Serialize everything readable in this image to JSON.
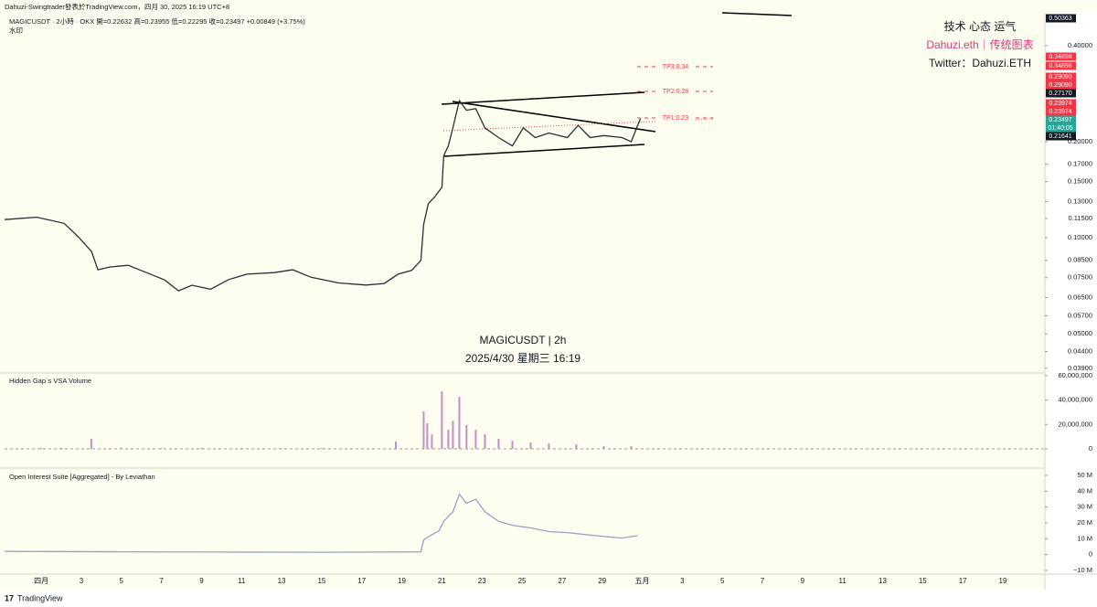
{
  "header": {
    "title": "Dahuzi-Swingtrader發表於TradingView.com，四月 30, 2025 16:19 UTC+8",
    "legend": "MAGICUSDT · 2小時 · OKX  開=0.22632 高=0.23955 低=0.22295 收=0.23497 +0.00849 (+3.75%)",
    "watermark_small": "水印"
  },
  "watermark": [
    "技术 心态 运气",
    "Dahuzi.eth｜传统图表",
    "Twitter：Dahuzi.ETH"
  ],
  "center_label": {
    "symbol": "MAGICUSDT | 2h",
    "date": "2025/4/30 星期三 16:19"
  },
  "tp_labels": [
    "TP3:0.34",
    "TP2:0.28",
    "TP1:0.23"
  ],
  "price_tags": [
    {
      "label": "0.50363",
      "color": "#131722"
    },
    {
      "label": "0.34898",
      "color": "#f23645"
    },
    {
      "label": "0.34898",
      "color": "#f23645"
    },
    {
      "label": "0.29090",
      "color": "#f23645"
    },
    {
      "label": "0.29090",
      "color": "#f23645"
    },
    {
      "label": "0.27170",
      "color": "#131722"
    },
    {
      "label": "0.23974",
      "color": "#f23645"
    },
    {
      "label": "0.23974",
      "color": "#f23645"
    },
    {
      "label": "0.23497",
      "color": "#26a69a"
    },
    {
      "label": "01:40:05",
      "color": "#26a69a"
    },
    {
      "label": "0.21641",
      "color": "#131722"
    }
  ],
  "footer": "TradingView",
  "chart_data": [
    {
      "type": "line",
      "log": true,
      "color": "#2a2e39",
      "xlim": [
        -0.83,
        51.1
      ],
      "xticks": [
        {
          "value": 1,
          "label": "四月"
        },
        3,
        5,
        7,
        9,
        11,
        13,
        15,
        17,
        19,
        21,
        23,
        25,
        27,
        29,
        {
          "value": 31,
          "label": "五月"
        },
        {
          "value": 33,
          "label": "3"
        },
        {
          "value": 35,
          "label": "5"
        },
        {
          "value": 37,
          "label": "7"
        },
        {
          "value": 39,
          "label": "9"
        },
        {
          "value": 41,
          "label": "11"
        },
        {
          "value": 43,
          "label": "13"
        },
        {
          "value": 45,
          "label": "15"
        },
        {
          "value": 47,
          "label": "17"
        },
        {
          "value": 49,
          "label": "19"
        }
      ],
      "ylim": [
        0.0377,
        0.507
      ],
      "yticks": [
        {
          "value": 0.4,
          "label": "0.40000"
        },
        {
          "value": 0.2,
          "label": "0.20000"
        },
        {
          "value": 0.17,
          "label": "0.17000"
        },
        {
          "value": 0.15,
          "label": "0.15000"
        },
        {
          "value": 0.13,
          "label": "0.13000"
        },
        {
          "value": 0.115,
          "label": "0.11500"
        },
        {
          "value": 0.1,
          "label": "0.10000"
        },
        {
          "value": 0.085,
          "label": "0.08500"
        },
        {
          "value": 0.075,
          "label": "0.07500"
        },
        {
          "value": 0.065,
          "label": "0.06500"
        },
        {
          "value": 0.057,
          "label": "0.05700"
        },
        {
          "value": 0.05,
          "label": "0.05000"
        },
        {
          "value": 0.044,
          "label": "0.04400"
        },
        {
          "value": 0.039,
          "label": "0.03900"
        }
      ],
      "x": [
        -0.83,
        0.77,
        2.14,
        2.83,
        3.51,
        3.83,
        4.42,
        5.34,
        6.25,
        7.16,
        7.85,
        8.53,
        9.45,
        10.36,
        11.27,
        12.64,
        13.56,
        14.47,
        15.84,
        17.21,
        18.12,
        18.81,
        19.49,
        19.95,
        20.09,
        20.32,
        20.63,
        21.0,
        21.09,
        21.32,
        21.55,
        21.87,
        22.23,
        22.69,
        23.15,
        23.83,
        24.52,
        25.06,
        25.66,
        26.34,
        27.26,
        27.8,
        28.4,
        29.08,
        29.99,
        30.45,
        30.77,
        30.91
      ],
      "values": [
        0.114,
        0.116,
        0.111,
        0.101,
        0.0906,
        0.0794,
        0.081,
        0.082,
        0.0778,
        0.0738,
        0.0682,
        0.071,
        0.069,
        0.074,
        0.0769,
        0.0778,
        0.0794,
        0.0752,
        0.0722,
        0.0711,
        0.0719,
        0.0769,
        0.079,
        0.0849,
        0.11,
        0.128,
        0.134,
        0.144,
        0.181,
        0.194,
        0.221,
        0.269,
        0.251,
        0.254,
        0.221,
        0.206,
        0.194,
        0.221,
        0.206,
        0.213,
        0.206,
        0.225,
        0.206,
        0.209,
        0.206,
        0.2,
        0.225,
        0.236
      ]
    },
    {
      "type": "bar",
      "title": "Hidden Gap`s VSA Volume",
      "color": "#c48fc8",
      "ylim": [
        -15700000,
        62200000
      ],
      "yticks": [
        {
          "value": 60000000,
          "label": "60,000,000"
        },
        {
          "value": 40000000,
          "label": "40,000,000"
        },
        {
          "value": 20000000,
          "label": "20,000,000"
        },
        0
      ],
      "x": [
        1,
        2,
        3.5,
        5,
        7,
        9,
        11,
        13,
        15,
        17,
        18.7,
        20.09,
        20.27,
        20.5,
        21.0,
        21.32,
        21.55,
        21.87,
        22.23,
        22.69,
        23.15,
        23.83,
        24.52,
        25.43,
        26.34,
        27.71,
        29.08,
        30.45
      ],
      "values": [
        800000,
        900000,
        8200000,
        1000000,
        700000,
        900000,
        800000,
        600000,
        700000,
        600000,
        6000000,
        30700000,
        21000000,
        12000000,
        47000000,
        15700000,
        23000000,
        42700000,
        19500000,
        15700000,
        12000000,
        8200000,
        6700000,
        5200000,
        4500000,
        3700000,
        2200000,
        2200000
      ]
    },
    {
      "type": "line",
      "title": "Open Interest Suite [Aggregated] - By Leviathan",
      "color": "#9aa0c8",
      "ylim": [
        -12.3,
        54.6
      ],
      "yticks": [
        {
          "value": 50,
          "label": "50 M"
        },
        {
          "value": 40,
          "label": "40 M"
        },
        {
          "value": 30,
          "label": "30 M"
        },
        {
          "value": 20,
          "label": "20 M"
        },
        {
          "value": 10,
          "label": "10 M"
        },
        0,
        {
          "value": -10,
          "label": "−10 M"
        }
      ],
      "x": [
        -0.83,
        5,
        10,
        15,
        19.95,
        20.09,
        20.41,
        20.86,
        21.09,
        21.55,
        21.87,
        22.23,
        22.69,
        23.15,
        23.83,
        24.52,
        25.43,
        26.34,
        27.26,
        28.63,
        30.0,
        30.77
      ],
      "values": [
        2.0,
        1.8,
        1.6,
        1.5,
        1.7,
        9.2,
        12,
        15,
        21,
        27,
        38,
        32.4,
        35,
        27,
        21,
        18.5,
        16.8,
        14.5,
        13.9,
        12,
        10.4,
        12
      ]
    }
  ]
}
